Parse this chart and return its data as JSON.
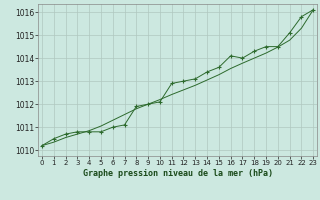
{
  "x": [
    0,
    1,
    2,
    3,
    4,
    5,
    6,
    7,
    8,
    9,
    10,
    11,
    12,
    13,
    14,
    15,
    16,
    17,
    18,
    19,
    20,
    21,
    22,
    23
  ],
  "y_main": [
    1010.2,
    1010.5,
    1010.7,
    1010.8,
    1010.8,
    1010.8,
    1011.0,
    1011.1,
    1011.9,
    1012.0,
    1012.1,
    1012.9,
    1013.0,
    1013.1,
    1013.4,
    1013.6,
    1014.1,
    1014.0,
    1014.3,
    1014.5,
    1014.5,
    1015.1,
    1015.8,
    1016.1
  ],
  "y_smooth": [
    1010.2,
    1010.35,
    1010.55,
    1010.7,
    1010.85,
    1011.05,
    1011.3,
    1011.55,
    1011.8,
    1012.0,
    1012.2,
    1012.42,
    1012.62,
    1012.82,
    1013.05,
    1013.28,
    1013.55,
    1013.78,
    1014.0,
    1014.22,
    1014.48,
    1014.78,
    1015.3,
    1016.1
  ],
  "line_color": "#2d6a2d",
  "bg_color": "#cce8e0",
  "grid_color": "#b0c8c0",
  "xlabel": "Graphe pression niveau de la mer (hPa)",
  "ylim": [
    1009.75,
    1016.35
  ],
  "yticks": [
    1010,
    1011,
    1012,
    1013,
    1014,
    1015,
    1016
  ],
  "xticks": [
    0,
    1,
    2,
    3,
    4,
    5,
    6,
    7,
    8,
    9,
    10,
    11,
    12,
    13,
    14,
    15,
    16,
    17,
    18,
    19,
    20,
    21,
    22,
    23
  ]
}
